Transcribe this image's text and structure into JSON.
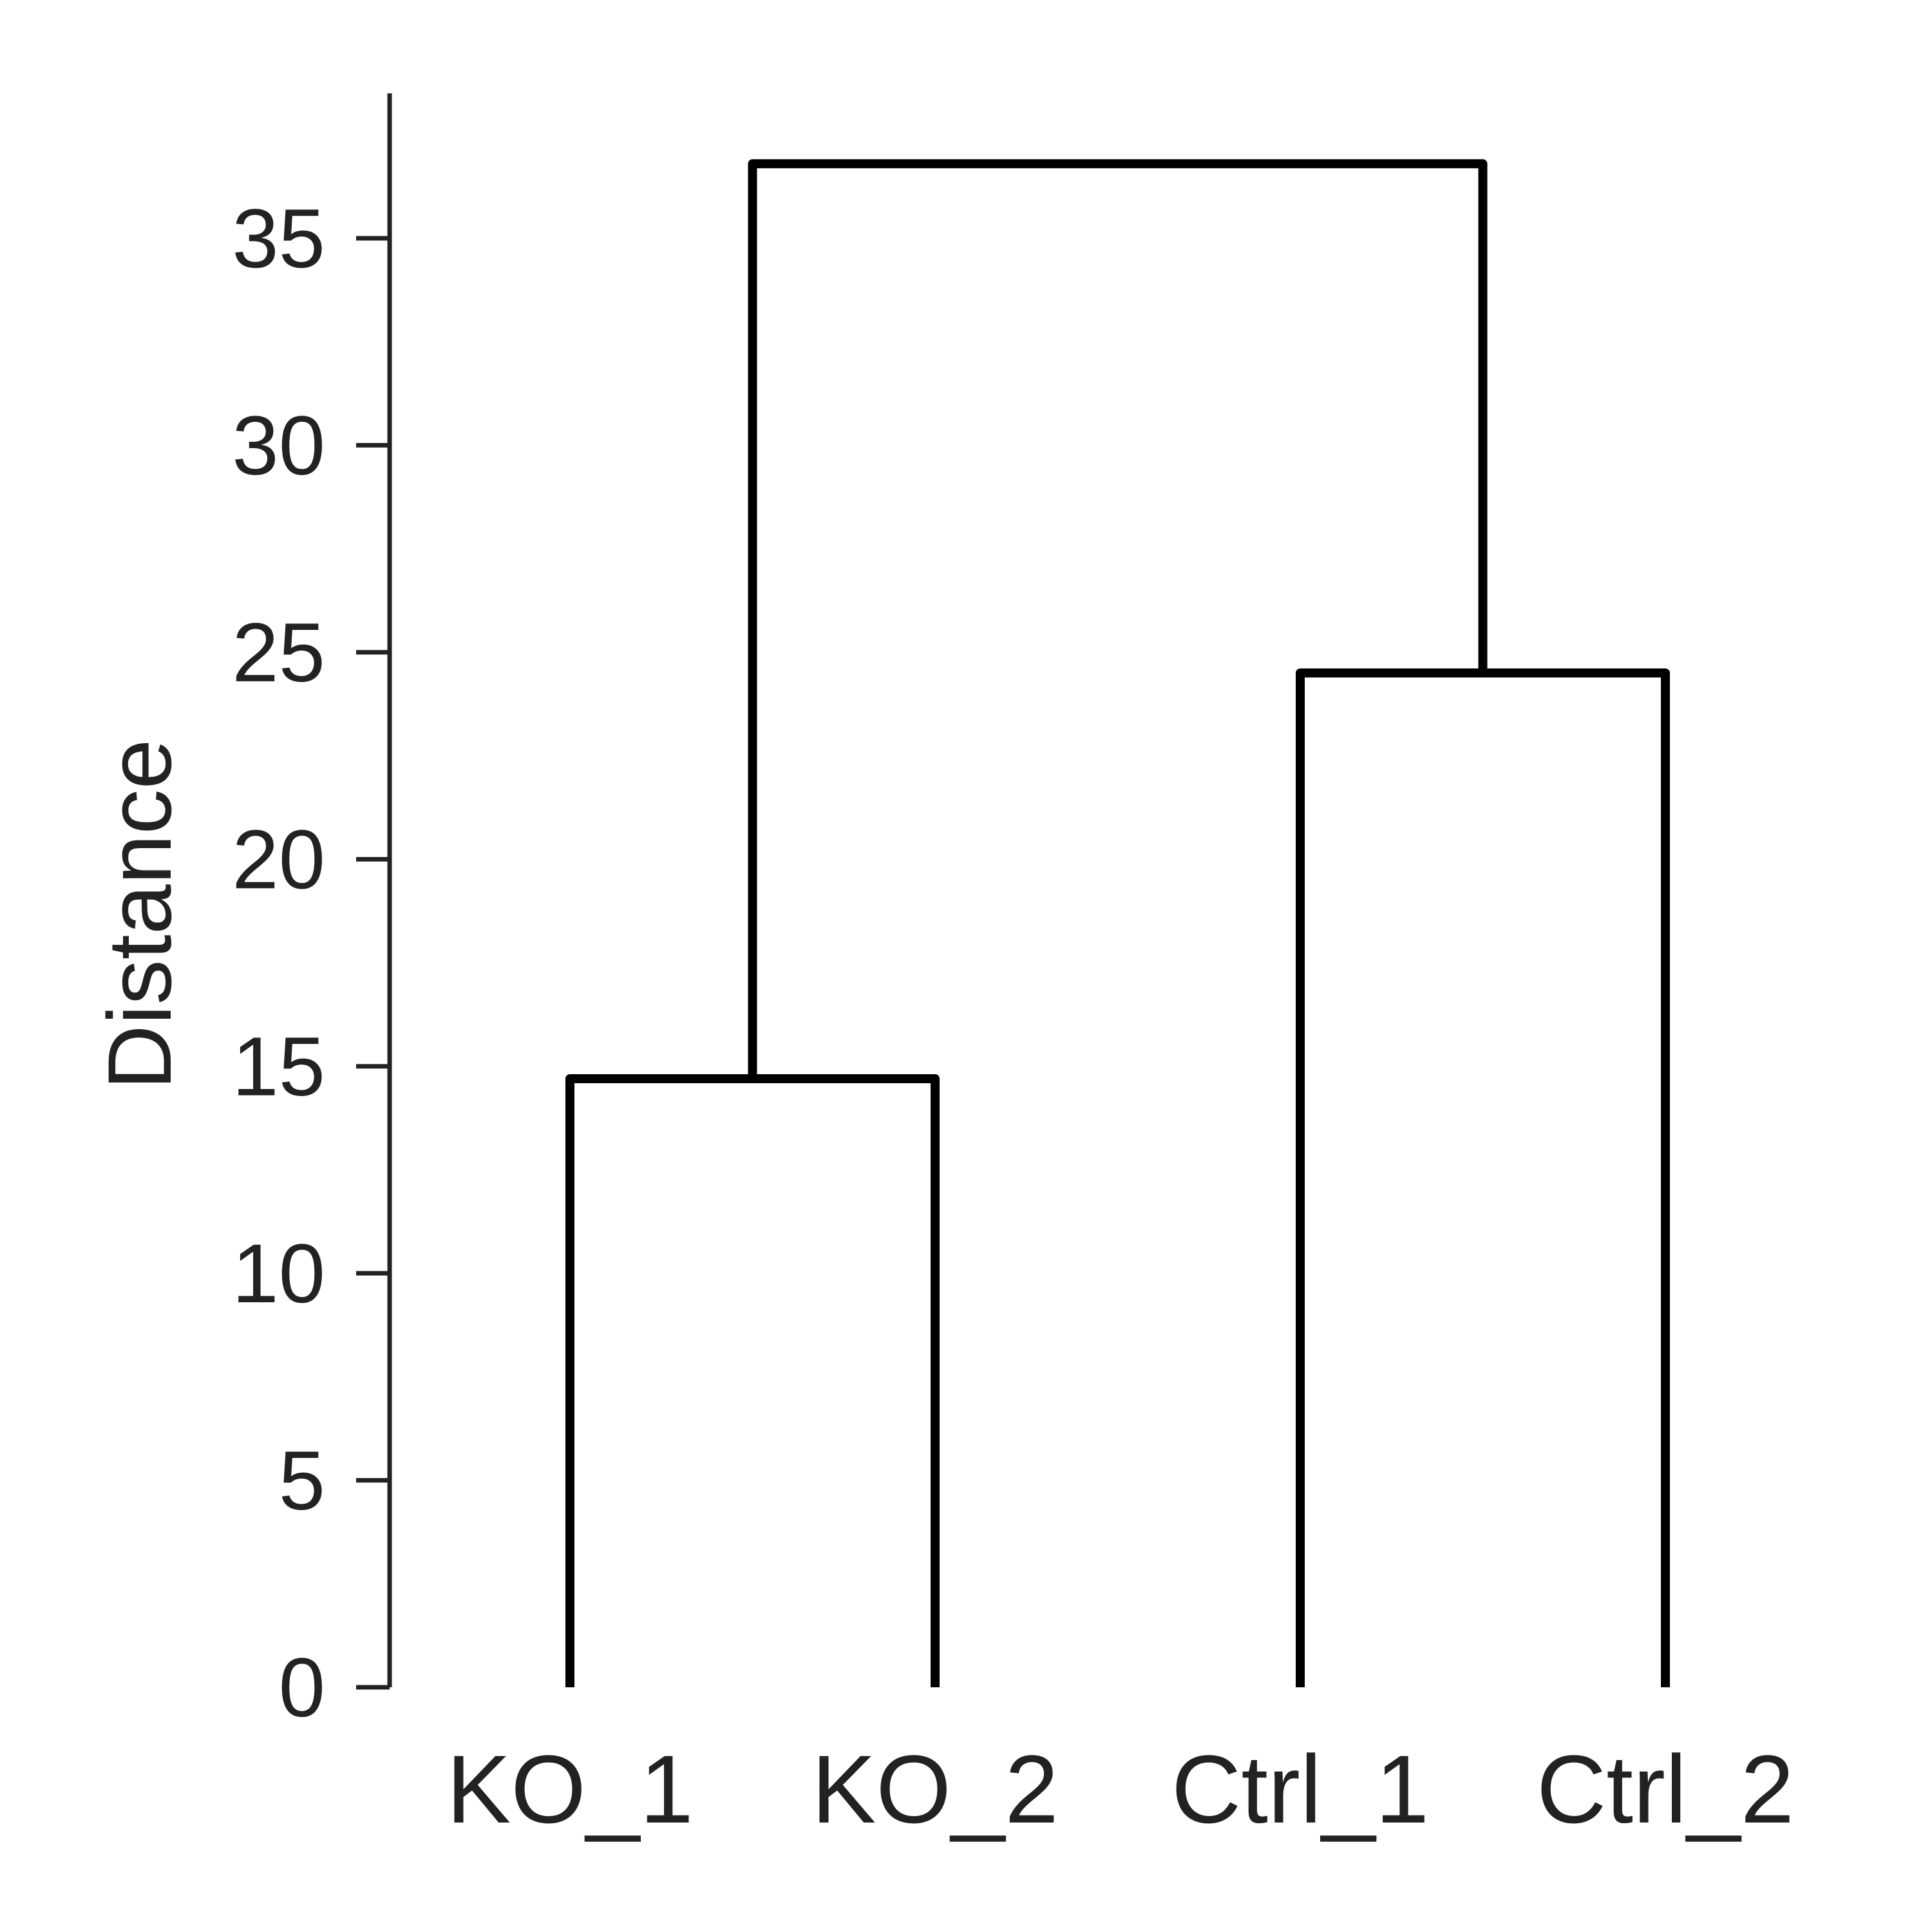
{
  "chart_data": {
    "type": "dendrogram",
    "ylabel": "Distance",
    "ylim": [
      0,
      38.5
    ],
    "yticks": [
      0,
      5,
      10,
      15,
      20,
      25,
      30,
      35
    ],
    "leaves": [
      "KO_1",
      "KO_2",
      "Ctrl_1",
      "Ctrl_2"
    ],
    "merges": [
      {
        "left": "KO_1",
        "right": "KO_2",
        "height": 14.7
      },
      {
        "left": "Ctrl_1",
        "right": "Ctrl_2",
        "height": 24.5
      },
      {
        "left": "KO_1+KO_2",
        "right": "Ctrl_1+Ctrl_2",
        "height": 36.8
      }
    ],
    "grid": false,
    "line_color": "#000000",
    "axis_color": "#222222"
  }
}
